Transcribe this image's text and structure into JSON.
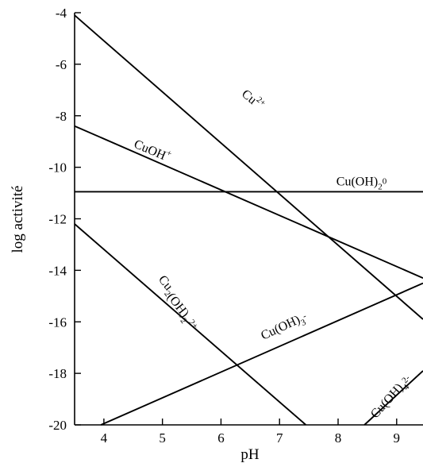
{
  "chart_data": {
    "type": "line",
    "xlabel": "pH",
    "ylabel": "log activité",
    "xlim": [
      3.5,
      9.45
    ],
    "ylim": [
      -20,
      -4
    ],
    "xticks": [
      4,
      5,
      6,
      7,
      8,
      9
    ],
    "yticks": [
      -4,
      -6,
      -8,
      -10,
      -12,
      -14,
      -16,
      -18,
      -20
    ],
    "grid": false,
    "legend": "none",
    "series": [
      {
        "id": "cu2",
        "name": "Cu2+",
        "label_parts": [
          {
            "t": "Cu"
          },
          {
            "t": "2+",
            "sup": true
          }
        ],
        "x": [
          3.5,
          9.45
        ],
        "y": [
          -4.1,
          -15.9
        ],
        "label_at": [
          6.5,
          -7.5
        ],
        "label_rotate": 40
      },
      {
        "id": "cuoh",
        "name": "CuOH+",
        "label_parts": [
          {
            "t": "CuOH"
          },
          {
            "t": "+",
            "sup": true
          }
        ],
        "x": [
          3.5,
          9.45
        ],
        "y": [
          -8.4,
          -14.3
        ],
        "label_at": [
          4.8,
          -9.5
        ],
        "label_rotate": 23
      },
      {
        "id": "cuoh2",
        "name": "Cu(OH)2 0",
        "label_parts": [
          {
            "t": "Cu(OH)"
          },
          {
            "t": "2",
            "sub": true
          },
          {
            "t": "0",
            "sup": true
          }
        ],
        "x": [
          3.5,
          9.45
        ],
        "y": [
          -10.95,
          -10.95
        ],
        "label_at": [
          8.4,
          -10.7
        ],
        "label_rotate": 0
      },
      {
        "id": "cu2oh2",
        "name": "Cu2(OH)2 2+",
        "label_parts": [
          {
            "t": "Cu"
          },
          {
            "t": "2",
            "sub": true
          },
          {
            "t": "(OH)"
          },
          {
            "t": "2",
            "sub": true
          },
          {
            "t": " 2+",
            "sup": true
          }
        ],
        "x": [
          3.5,
          7.45
        ],
        "y": [
          -12.2,
          -20
        ],
        "label_at": [
          5.25,
          -15.3
        ],
        "label_rotate": 52
      },
      {
        "id": "cuoh3",
        "name": "Cu(OH)3-",
        "label_parts": [
          {
            "t": "Cu(OH)"
          },
          {
            "t": "3",
            "sub": true
          },
          {
            "t": "-",
            "sup": true
          }
        ],
        "x": [
          3.95,
          9.45
        ],
        "y": [
          -20,
          -14.5
        ],
        "label_at": [
          7.1,
          -16.3
        ],
        "label_rotate": -25
      },
      {
        "id": "cuoh4",
        "name": "Cu(OH)4 2-",
        "label_parts": [
          {
            "t": "Cu(OH)"
          },
          {
            "t": "4",
            "sub": true
          },
          {
            "t": "2-",
            "sup": true
          }
        ],
        "x": [
          8.45,
          9.45
        ],
        "y": [
          -20,
          -17.9
        ],
        "label_at": [
          8.95,
          -19.0
        ],
        "label_rotate": -48
      }
    ]
  }
}
